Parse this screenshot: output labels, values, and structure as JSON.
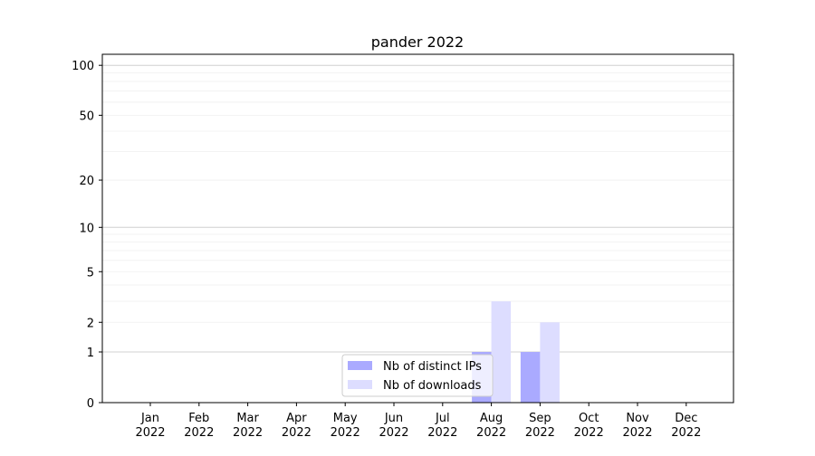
{
  "chart_data": {
    "type": "bar",
    "title": "pander 2022",
    "categories": [
      "Jan\n2022",
      "Feb\n2022",
      "Mar\n2022",
      "Apr\n2022",
      "May\n2022",
      "Jun\n2022",
      "Jul\n2022",
      "Aug\n2022",
      "Sep\n2022",
      "Oct\n2022",
      "Nov\n2022",
      "Dec\n2022"
    ],
    "series": [
      {
        "name": "Nb of distinct IPs",
        "color": "#aaaaff",
        "values": [
          0,
          0,
          0,
          0,
          0,
          0,
          0,
          1,
          1,
          0,
          0,
          0
        ]
      },
      {
        "name": "Nb of downloads",
        "color": "#ddddff",
        "values": [
          0,
          0,
          0,
          0,
          0,
          0,
          0,
          3,
          2,
          0,
          0,
          0
        ]
      }
    ],
    "yscale": "symlog",
    "yticks": [
      0,
      1,
      2,
      5,
      10,
      20,
      50,
      100
    ],
    "ylim": [
      0,
      130
    ],
    "grid": true,
    "legend": "lower-center"
  }
}
